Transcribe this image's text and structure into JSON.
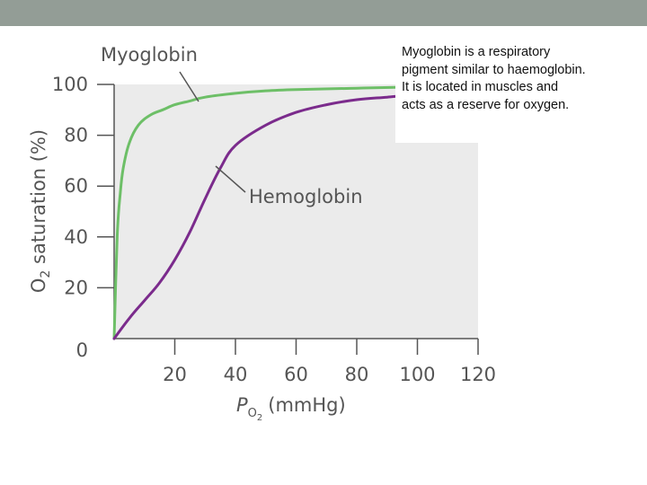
{
  "colors": {
    "top_bar": "#939d96",
    "plot_background": "#ebebeb",
    "myoglobin": "#6dbf67",
    "hemoglobin": "#7b2b8c",
    "axis": "#555555"
  },
  "note": {
    "lines": [
      "Myoglobin is a respiratory",
      "pigment similar to haemoglobin.",
      "It is located in muscles and",
      "acts as a reserve for oxygen."
    ]
  },
  "chart_data": {
    "type": "line",
    "xlabel": "P",
    "xlabel_sub": "O",
    "xlabel_sub2": "2",
    "xlabel_unit": "(mmHg)",
    "ylabel_pre": "O",
    "ylabel_sub": "2",
    "ylabel_post": " saturation (%)",
    "xlim": [
      0,
      120
    ],
    "ylim": [
      0,
      100
    ],
    "x_ticks": [
      "20",
      "40",
      "60",
      "80",
      "100",
      "120"
    ],
    "y_ticks": [
      "0",
      "20",
      "40",
      "60",
      "80",
      "100"
    ],
    "series": [
      {
        "name": "Myoglobin",
        "color": "#6dbf67",
        "x": [
          0,
          1,
          2,
          3,
          5,
          8,
          12,
          16,
          20,
          25,
          30,
          40,
          50,
          60,
          80,
          100,
          110
        ],
        "y": [
          0,
          40,
          57,
          67,
          77,
          84,
          88,
          90,
          92,
          93.5,
          95,
          96.5,
          97.5,
          98,
          98.5,
          99,
          99
        ]
      },
      {
        "name": "Hemoglobin",
        "color": "#7b2b8c",
        "x": [
          0,
          5,
          10,
          15,
          20,
          25,
          30,
          35,
          40,
          50,
          60,
          70,
          80,
          90,
          100,
          110
        ],
        "y": [
          0,
          8,
          15,
          22,
          31,
          42,
          55,
          67,
          76,
          84,
          89,
          92,
          94,
          95,
          96,
          96.5
        ]
      }
    ]
  }
}
